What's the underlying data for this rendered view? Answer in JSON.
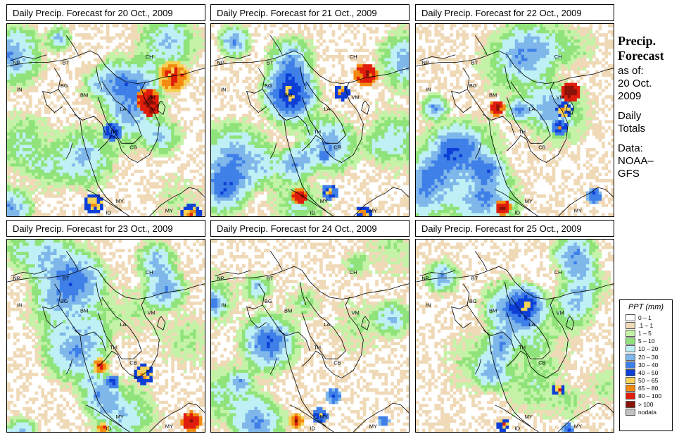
{
  "panels": [
    {
      "title": "Daily Precip. Forecast for  20 Oct., 2009",
      "seed": 11,
      "hotspots": [
        [
          0.71,
          0.39,
          0.06,
          8
        ],
        [
          0.84,
          0.27,
          0.08,
          7
        ],
        [
          0.72,
          0.42,
          0.05,
          9
        ],
        [
          0.93,
          0.97,
          0.05,
          6
        ],
        [
          0.53,
          0.55,
          0.05,
          5
        ],
        [
          0.44,
          0.92,
          0.05,
          6
        ]
      ]
    },
    {
      "title": "Daily Precip. Forecast for  21 Oct., 2009",
      "seed": 23,
      "hotspots": [
        [
          0.78,
          0.26,
          0.06,
          8
        ],
        [
          0.66,
          0.35,
          0.04,
          6
        ],
        [
          0.45,
          0.88,
          0.04,
          8
        ],
        [
          0.6,
          0.86,
          0.04,
          5
        ],
        [
          0.77,
          0.97,
          0.04,
          6
        ],
        [
          0.57,
          0.68,
          0.03,
          4
        ]
      ]
    },
    {
      "title": "Daily Precip. Forecast for  22 Oct., 2009",
      "seed": 37,
      "hotspots": [
        [
          0.78,
          0.35,
          0.05,
          9
        ],
        [
          0.41,
          0.43,
          0.04,
          8
        ],
        [
          0.44,
          0.94,
          0.04,
          8
        ],
        [
          0.75,
          0.44,
          0.04,
          6
        ],
        [
          0.73,
          0.53,
          0.04,
          5
        ],
        [
          0.9,
          0.88,
          0.04,
          4
        ]
      ]
    },
    {
      "title": "Daily Precip. Forecast for  23 Oct., 2009",
      "seed": 41,
      "hotspots": [
        [
          0.47,
          0.65,
          0.04,
          7
        ],
        [
          0.69,
          0.69,
          0.05,
          6
        ],
        [
          0.93,
          0.93,
          0.05,
          8
        ],
        [
          0.53,
          0.73,
          0.04,
          4
        ],
        [
          0.48,
          0.97,
          0.03,
          7
        ]
      ]
    },
    {
      "title": "Daily Precip. Forecast for  24 Oct., 2009",
      "seed": 53,
      "hotspots": [
        [
          0.43,
          0.93,
          0.04,
          7
        ],
        [
          0.55,
          0.9,
          0.04,
          5
        ],
        [
          0.62,
          0.8,
          0.04,
          4
        ],
        [
          0.87,
          0.93,
          0.03,
          4
        ]
      ]
    },
    {
      "title": "Daily Precip. Forecast for  25 Oct., 2009",
      "seed": 67,
      "hotspots": [
        [
          0.72,
          0.77,
          0.03,
          6
        ],
        [
          0.44,
          0.95,
          0.03,
          6
        ],
        [
          0.77,
          0.97,
          0.03,
          4
        ]
      ]
    }
  ],
  "map_labels": [
    "NP",
    "BT",
    "BG",
    "IN",
    "CH",
    "BM",
    "VM",
    "LA",
    "TH",
    "CB",
    "MY",
    "MY",
    "ID"
  ],
  "sidebar": {
    "title_line1": "Precip.",
    "title_line2": "Forecast",
    "asof": "as of:",
    "date_line1": "20 Oct.",
    "date_line2": "2009",
    "daily_line1": "Daily",
    "daily_line2": "Totals",
    "data_line1": "Data:",
    "data_line2": "NOAA–",
    "data_line3": "GFS"
  },
  "legend": {
    "title": "PPT (mm)",
    "items": [
      {
        "label": "0 – 1",
        "color": "#ffffff"
      },
      {
        "label": ".1 – 1",
        "color": "#efd9b7"
      },
      {
        "label": "1 – 5",
        "color": "#c4f3a8"
      },
      {
        "label": "5 – 10",
        "color": "#8fe37a"
      },
      {
        "label": "10 – 20",
        "color": "#bff0f5"
      },
      {
        "label": "20 – 30",
        "color": "#7fb7ea"
      },
      {
        "label": "30 – 40",
        "color": "#3f7fe8"
      },
      {
        "label": "40 – 50",
        "color": "#0d3fd6"
      },
      {
        "label": "50 – 65",
        "color": "#f6d256"
      },
      {
        "label": "65 – 80",
        "color": "#f28a10"
      },
      {
        "label": "80 – 100",
        "color": "#e01c0c"
      },
      {
        "label": "> 100",
        "color": "#8a1208"
      },
      {
        "label": "nodata",
        "color": "#c2c2c2"
      }
    ]
  }
}
